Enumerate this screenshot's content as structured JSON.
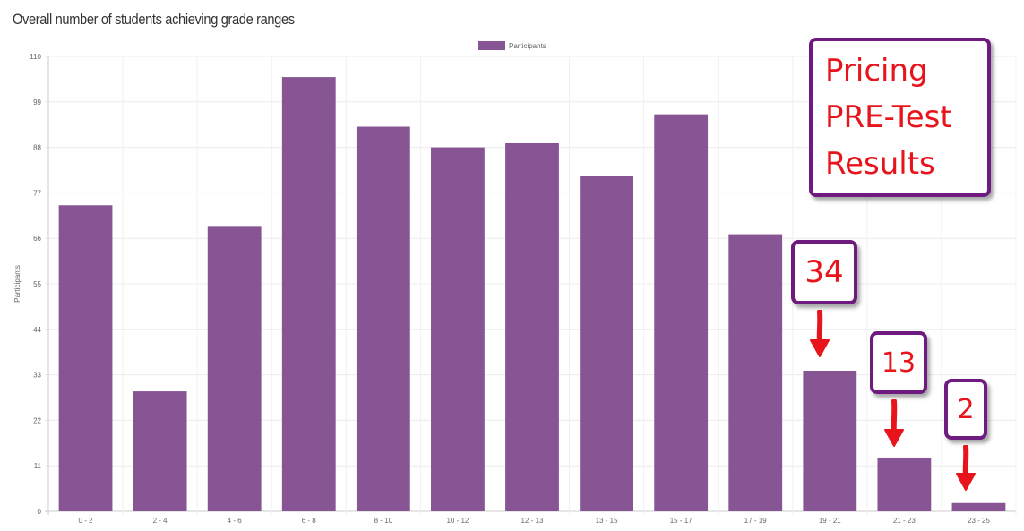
{
  "page": {
    "title": "Overall number of students achieving grade ranges"
  },
  "chart_data": {
    "type": "bar",
    "categories": [
      "0 - 2",
      "2 - 4",
      "4 - 6",
      "6 - 8",
      "8 - 10",
      "10 - 12",
      "12 - 13",
      "13 - 15",
      "15 - 17",
      "17 - 19",
      "19 - 21",
      "21 - 23",
      "23 - 25"
    ],
    "series": [
      {
        "name": "Participants",
        "color": "#875594",
        "values": [
          74,
          29,
          69,
          105,
          93,
          88,
          89,
          81,
          96,
          67,
          34,
          13,
          2
        ]
      }
    ],
    "ylabel": "Participants",
    "xlabel": "",
    "ylim": [
      0,
      110
    ],
    "yticks": [
      0,
      11,
      22,
      33,
      44,
      55,
      66,
      77,
      88,
      99,
      110
    ],
    "grid": true,
    "legend": "top-center"
  },
  "annotations": {
    "title_box": "Pricing\nPRE-Test\nResults",
    "callouts": [
      {
        "text": "34",
        "category": "19 - 21"
      },
      {
        "text": "13",
        "category": "21 - 23"
      },
      {
        "text": "2",
        "category": "23 - 25"
      }
    ],
    "text_color": "#e8141c",
    "border_color": "#6e1a7e",
    "arrow_color": "#e8141c"
  }
}
